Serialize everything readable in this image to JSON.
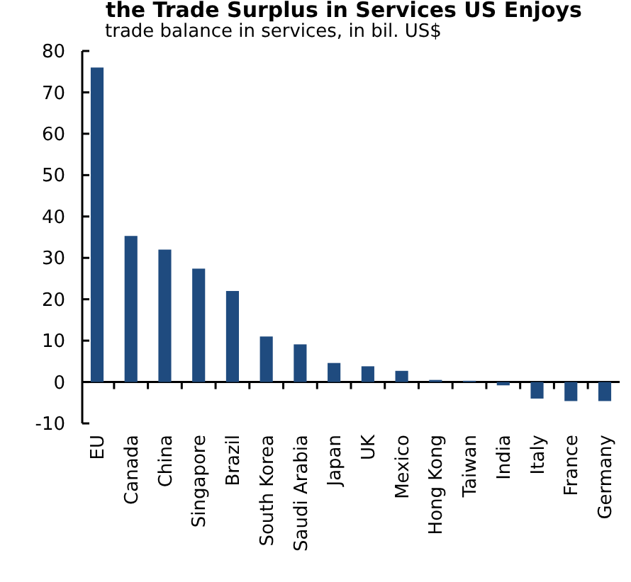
{
  "chart_data": {
    "type": "bar",
    "title": "the Trade Surplus in Services US Enjoys",
    "subtitle": "trade balance in services, in bil. US$",
    "categories": [
      "EU",
      "Canada",
      "China",
      "Singapore",
      "Brazil",
      "South Korea",
      "Saudi Arabia",
      "Japan",
      "UK",
      "Mexico",
      "Hong Kong",
      "Taiwan",
      "India",
      "Italy",
      "France",
      "Germany"
    ],
    "values": [
      76,
      35.3,
      32,
      27.4,
      22,
      11,
      9.1,
      4.6,
      3.8,
      2.7,
      0.5,
      0.3,
      -0.8,
      -4,
      -4.6,
      -4.6
    ],
    "color": "#1f4b7f",
    "ylim": [
      -10,
      80
    ],
    "yticks": [
      -10,
      0,
      10,
      20,
      30,
      40,
      50,
      60,
      70,
      80
    ]
  }
}
